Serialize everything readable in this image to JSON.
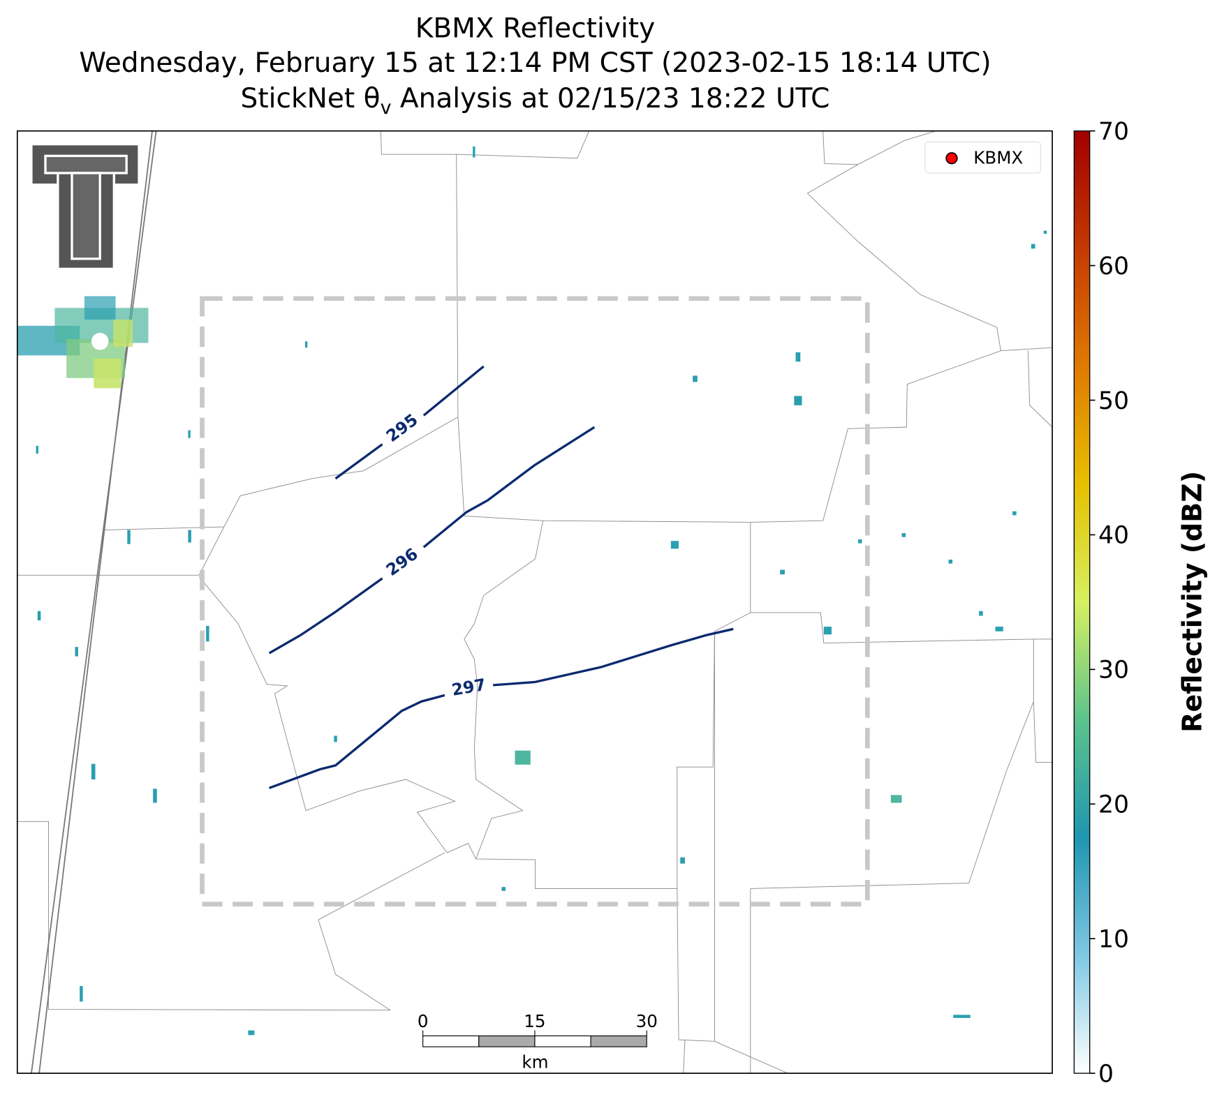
{
  "title": {
    "line1": "KBMX Reflectivity",
    "line2": "Wednesday, February 15 at 12:14 PM CST (2023-02-15 18:14 UTC)",
    "line3": {
      "pre": "StickNet θ",
      "sub": "v",
      "post": " Analysis at 02/15/23 18:22 UTC"
    }
  },
  "legend": {
    "label": "KBMX",
    "color": "#ff0000"
  },
  "contours": {
    "color": "#0b2a6e",
    "levels": [
      295,
      296,
      297
    ]
  },
  "scale_bar": {
    "ticks": [
      0,
      15,
      30
    ],
    "unit": "km"
  },
  "colorbar": {
    "label": "Reflectivity (dBZ)",
    "lim": [
      0,
      70
    ],
    "ticks": [
      0,
      10,
      20,
      30,
      40,
      50,
      60,
      70
    ],
    "colors": [
      "#ffffff",
      "#7fc8e4",
      "#1f96b0",
      "#5cc38c",
      "#d6f060",
      "#e6c000",
      "#e07a00",
      "#c43a00",
      "#a00000"
    ]
  }
}
